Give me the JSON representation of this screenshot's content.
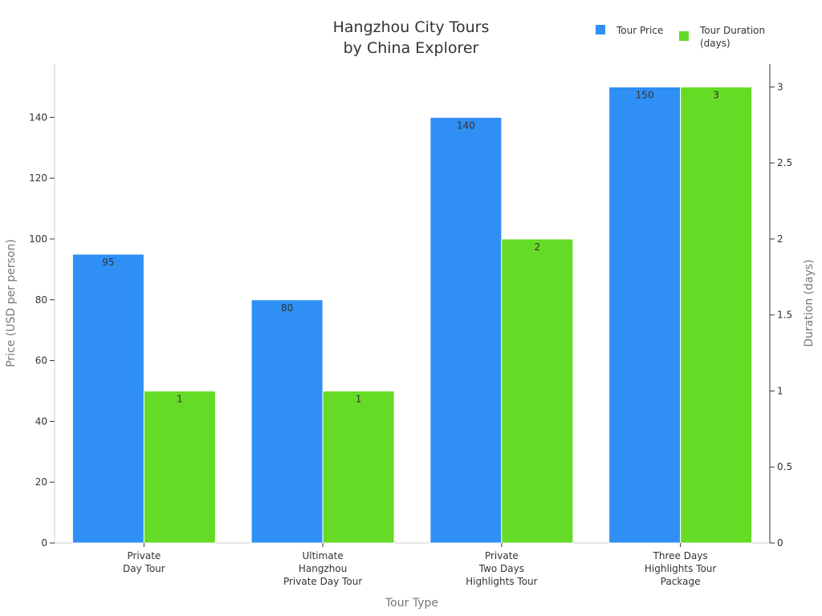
{
  "chart_data": {
    "type": "bar",
    "title": [
      "Hangzhou City Tours",
      "by China Explorer"
    ],
    "xlabel": "Tour Type",
    "ylabel_left": "Price (USD per person)",
    "ylabel_right": "Duration (days)",
    "categories": [
      [
        "Private",
        "Day Tour"
      ],
      [
        "Ultimate",
        "Hangzhou",
        "Private Day Tour"
      ],
      [
        "Private",
        "Two Days",
        "Highlights Tour"
      ],
      [
        "Three Days",
        "Highlights Tour",
        "Package"
      ]
    ],
    "series": [
      {
        "name": "Tour Price",
        "axis": "left",
        "color": "#2f8ff5",
        "values": [
          95,
          80,
          140,
          150
        ]
      },
      {
        "name": [
          "Tour Duration",
          "(days)"
        ],
        "axis": "right",
        "color": "#66db26",
        "values": [
          1,
          1,
          2,
          3
        ]
      }
    ],
    "ylim_left": [
      0,
      157.5
    ],
    "ylim_right": [
      0,
      3.15
    ],
    "yticks_left": [
      "0",
      "20",
      "40",
      "60",
      "80",
      "100",
      "120",
      "140"
    ],
    "yticks_right": [
      "0",
      "0.5",
      "1",
      "1.5",
      "2",
      "2.5",
      "3"
    ],
    "grid": false,
    "legend_position": "top-right"
  }
}
